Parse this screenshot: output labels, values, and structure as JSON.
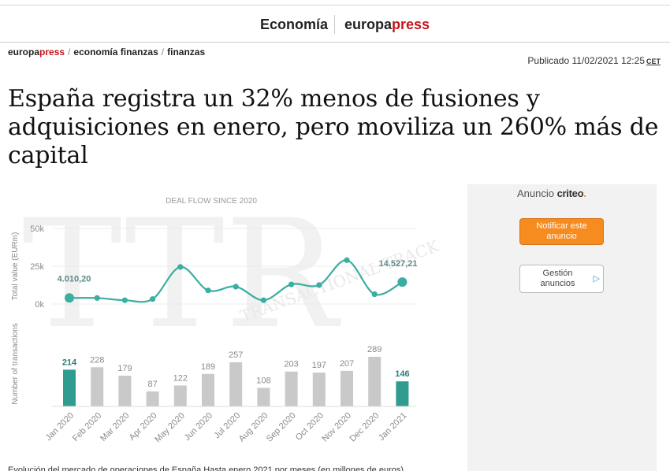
{
  "header": {
    "section": "Economía",
    "brand_prefix": "europa",
    "brand_suffix": "press"
  },
  "breadcrumb": {
    "site_prefix": "europa",
    "site_suffix": "press",
    "items": [
      "economía finanzas",
      "finanzas"
    ]
  },
  "meta": {
    "published": "Publicado 11/02/2021 12:25",
    "timezone": "CET"
  },
  "article": {
    "title": "España registra un 32% menos de fusiones y adquisiciones en enero, pero moviliza un 260% más de capital",
    "caption": "Evolución del mercado de operaciones de España Hasta enero 2021 por meses (en millones de euros)"
  },
  "ad": {
    "label": "Anuncio",
    "network": "criteo",
    "network_dot": ".",
    "notify_button": "Notificar este anuncio",
    "manage_button": "Gestión anuncios",
    "manage_icon": "adchoices-icon"
  },
  "chart_data": {
    "type": "line",
    "title": "DEAL FLOW SINCE 2020",
    "watermark": "TTR",
    "watermark_text": "TRANSACTIONAL TRACK RECORD",
    "categories": [
      "Jan 2020",
      "Feb 2020",
      "Mar 2020",
      "Apr 2020",
      "May 2020",
      "Jun 2020",
      "Jul 2020",
      "Aug 2020",
      "Sep 2020",
      "Oct 2020",
      "Nov 2020",
      "Dec 2020",
      "Jan 2021"
    ],
    "value_panel": {
      "ylabel": "Total value (EURm)",
      "ylim": [
        0,
        50000
      ],
      "yticks": [
        "0k",
        "25k",
        "50k"
      ],
      "series": [
        {
          "values": [
            4010.2,
            4000,
            2500,
            3300,
            24500,
            9000,
            11500,
            2500,
            13000,
            12500,
            29000,
            6500,
            14527.21
          ]
        }
      ],
      "labels": {
        "first": "4.010,20",
        "last": "14.527,21"
      },
      "color": "#3aaea0"
    },
    "count_panel": {
      "type": "bar",
      "ylabel": "Number of transactions",
      "values": [
        214,
        228,
        179,
        87,
        122,
        189,
        257,
        108,
        203,
        197,
        207,
        289,
        146
      ],
      "highlight": [
        0,
        12
      ],
      "bar_color": "#c9c9c9",
      "highlight_color": "#2f9c8f"
    }
  }
}
